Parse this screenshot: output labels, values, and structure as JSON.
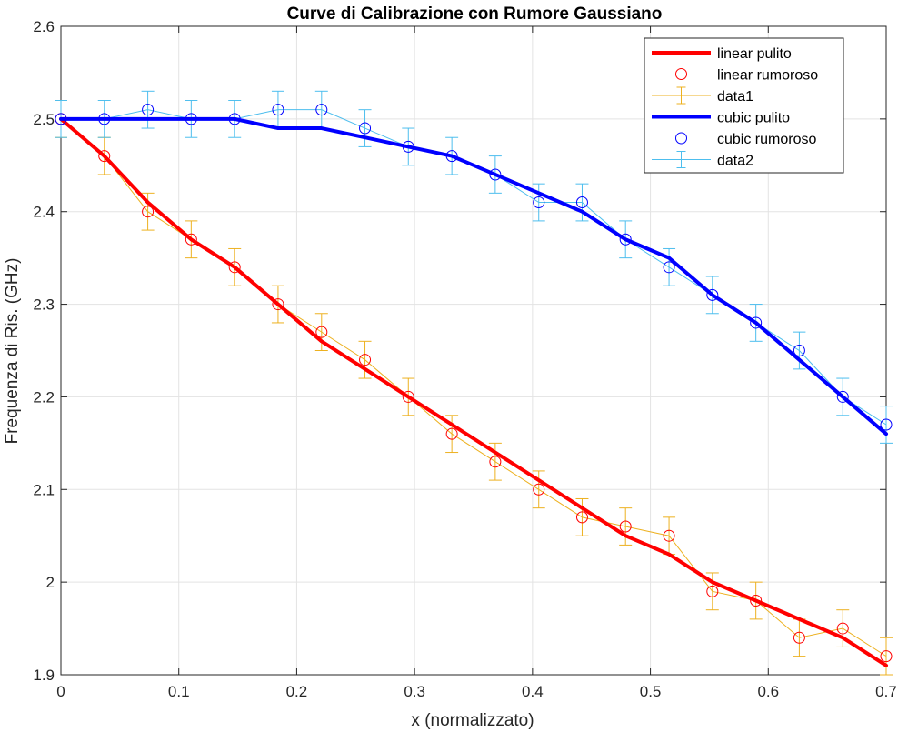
{
  "chart_data": {
    "type": "line",
    "title": "Curve di Calibrazione con Rumore Gaussiano",
    "xlabel": "x (normalizzato)",
    "ylabel": "Frequenza di Ris. (GHz)",
    "xlim": [
      0,
      0.7
    ],
    "ylim": [
      1.9,
      2.6
    ],
    "xticks": [
      0,
      0.1,
      0.2,
      0.3,
      0.4,
      0.5,
      0.6,
      0.7
    ],
    "yticks": [
      1.9,
      2,
      2.1,
      2.2,
      2.3,
      2.4,
      2.5,
      2.6
    ],
    "xtick_labels": [
      "0",
      "0.1",
      "0.2",
      "0.3",
      "0.4",
      "0.5",
      "0.6",
      "0.7"
    ],
    "ytick_labels": [
      "1.9",
      "2",
      "2.1",
      "2.2",
      "2.3",
      "2.4",
      "2.5",
      "2.6"
    ],
    "grid": true,
    "legend_position": "top-right",
    "x": [
      0,
      0.0368,
      0.0737,
      0.1105,
      0.1474,
      0.1842,
      0.2211,
      0.2579,
      0.2947,
      0.3316,
      0.3684,
      0.4053,
      0.4421,
      0.4789,
      0.5158,
      0.5526,
      0.5895,
      0.6263,
      0.6632,
      0.7
    ],
    "error": 0.02,
    "series": [
      {
        "name": "linear pulito",
        "color": "#ff0000",
        "style": "thick-line",
        "values": [
          2.5,
          2.46,
          2.41,
          2.37,
          2.34,
          2.3,
          2.26,
          2.23,
          2.2,
          2.17,
          2.14,
          2.11,
          2.08,
          2.05,
          2.03,
          2.0,
          1.98,
          1.96,
          1.94,
          1.91
        ]
      },
      {
        "name": "linear rumoroso",
        "color": "#ff0000",
        "style": "circle-marker",
        "values": [
          2.5,
          2.46,
          2.4,
          2.37,
          2.34,
          2.3,
          2.27,
          2.24,
          2.2,
          2.16,
          2.13,
          2.1,
          2.07,
          2.06,
          2.05,
          1.99,
          1.98,
          1.94,
          1.95,
          1.92
        ]
      },
      {
        "name": "data1",
        "color": "#edb120",
        "style": "errorbar",
        "values": [
          2.5,
          2.46,
          2.4,
          2.37,
          2.34,
          2.3,
          2.27,
          2.24,
          2.2,
          2.16,
          2.13,
          2.1,
          2.07,
          2.06,
          2.05,
          1.99,
          1.98,
          1.94,
          1.95,
          1.92
        ]
      },
      {
        "name": "cubic pulito",
        "color": "#0000ff",
        "style": "thick-line",
        "values": [
          2.5,
          2.5,
          2.5,
          2.5,
          2.5,
          2.49,
          2.49,
          2.48,
          2.47,
          2.46,
          2.44,
          2.42,
          2.4,
          2.37,
          2.35,
          2.31,
          2.28,
          2.24,
          2.2,
          2.16
        ]
      },
      {
        "name": "cubic rumoroso",
        "color": "#0000ff",
        "style": "circle-marker",
        "values": [
          2.5,
          2.5,
          2.51,
          2.5,
          2.5,
          2.51,
          2.51,
          2.49,
          2.47,
          2.46,
          2.44,
          2.41,
          2.41,
          2.37,
          2.34,
          2.31,
          2.28,
          2.25,
          2.2,
          2.17
        ]
      },
      {
        "name": "data2",
        "color": "#4dbeee",
        "style": "errorbar",
        "values": [
          2.5,
          2.5,
          2.51,
          2.5,
          2.5,
          2.51,
          2.51,
          2.49,
          2.47,
          2.46,
          2.44,
          2.41,
          2.41,
          2.37,
          2.34,
          2.31,
          2.28,
          2.25,
          2.2,
          2.17
        ]
      }
    ]
  }
}
